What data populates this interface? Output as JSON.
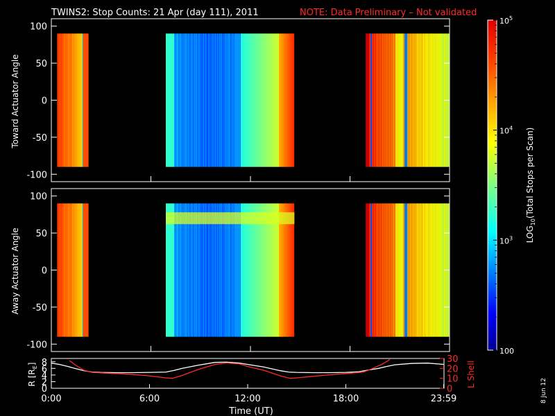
{
  "title": {
    "main": "TWINS2: Stop Counts: 21 Apr (day 111), 2011",
    "note": "NOTE: Data Preliminary – Not validated",
    "note_color": "#ff2a2a"
  },
  "date_stamp": "8 Jun 12",
  "chart_data": [
    {
      "type": "heatmap",
      "panel": "toward",
      "ylabel": "Toward Actuator Angle",
      "ylim": [
        -110,
        110
      ],
      "yticks": [
        100,
        50,
        0,
        -50,
        -100
      ],
      "x_range_hours": [
        0,
        24
      ],
      "data_angle_range": [
        -90,
        90
      ],
      "segments": [
        {
          "start_hr": 0.35,
          "end_hr": 2.25,
          "profile": "hot_edge"
        },
        {
          "start_hr": 6.9,
          "end_hr": 14.65,
          "profile": "cool_core"
        },
        {
          "start_hr": 18.95,
          "end_hr": 23.95,
          "profile": "hot_edge"
        }
      ]
    },
    {
      "type": "heatmap",
      "panel": "away",
      "ylabel": "Away Actuator Angle",
      "ylim": [
        -110,
        110
      ],
      "yticks": [
        100,
        50,
        0,
        -50,
        -100
      ],
      "x_range_hours": [
        0,
        24
      ],
      "data_angle_range": [
        -90,
        90
      ],
      "segments": [
        {
          "start_hr": 0.35,
          "end_hr": 2.25,
          "profile": "hot_edge"
        },
        {
          "start_hr": 6.9,
          "end_hr": 14.65,
          "profile": "cool_core_band"
        },
        {
          "start_hr": 18.95,
          "end_hr": 23.95,
          "profile": "hot_edge"
        }
      ]
    },
    {
      "type": "line",
      "panel": "orbit",
      "ylabel_left": "R [R",
      "ylabel_left_sub": "E",
      "ylabel_left_close": "]",
      "ylabel_right": "L Shell",
      "right_axis_color": "#ff2a2a",
      "left_ylim": [
        0,
        9
      ],
      "left_yticks": [
        0,
        2,
        4,
        6,
        8
      ],
      "right_ylim": [
        0,
        30
      ],
      "right_yticks": [
        0,
        10,
        20,
        30
      ],
      "xlabel": "Time (UT)",
      "xticks": [
        {
          "hr": 0,
          "label": "0:00"
        },
        {
          "hr": 6,
          "label": "6:00"
        },
        {
          "hr": 12,
          "label": "12:00"
        },
        {
          "hr": 18,
          "label": "18:00"
        },
        {
          "hr": 23.98,
          "label": "23:59"
        }
      ],
      "series": [
        {
          "color": "#ffffff",
          "x": [
            0,
            0.5,
            1,
            1.5,
            2,
            2.5,
            3,
            4,
            5,
            6,
            7,
            7.5,
            8,
            9,
            10,
            10.7,
            11.5,
            12,
            13,
            14,
            14.5,
            15,
            16,
            17,
            18,
            18.8,
            19.5,
            20,
            20.5,
            21,
            22,
            23,
            24
          ],
          "values": [
            7.6,
            7.2,
            6.6,
            5.9,
            5.3,
            4.9,
            4.8,
            4.7,
            4.7,
            4.8,
            4.9,
            5.4,
            6.0,
            7.0,
            7.8,
            7.9,
            7.6,
            7.2,
            6.4,
            5.3,
            4.9,
            4.8,
            4.7,
            4.7,
            4.8,
            5.0,
            5.6,
            6.0,
            6.6,
            7.1,
            7.5,
            7.6,
            7.2
          ]
        },
        {
          "color": "#ff2a2a",
          "axis": "right",
          "x": [
            1.1,
            1.5,
            2,
            2.5,
            3,
            4,
            5,
            6,
            7,
            7.4,
            8,
            9,
            10,
            10.7,
            11.5,
            12,
            13,
            14,
            14.6,
            15,
            16,
            17,
            18,
            19,
            19.5,
            20.2,
            20.7
          ],
          "values": [
            28,
            23,
            18,
            16,
            15.5,
            14.8,
            13.8,
            12.5,
            10.5,
            10,
            13,
            19,
            24,
            25.5,
            24.5,
            22,
            18,
            12.5,
            10,
            10.5,
            12,
            13.5,
            14.8,
            16,
            19,
            24,
            29
          ]
        }
      ]
    },
    {
      "type": "heatmap",
      "panel": "colorbar",
      "ylabel": "LOG",
      "ylabel_sub": "10",
      "ylabel_rest": "(Total Stops per Scan)",
      "log_range": [
        2,
        5
      ],
      "ticks": [
        {
          "value": 100,
          "base": "100",
          "exp": ""
        },
        {
          "value": 1000,
          "base": "10",
          "exp": "3"
        },
        {
          "value": 10000,
          "base": "10",
          "exp": "4"
        },
        {
          "value": 100000,
          "base": "10",
          "exp": "5"
        }
      ]
    }
  ]
}
